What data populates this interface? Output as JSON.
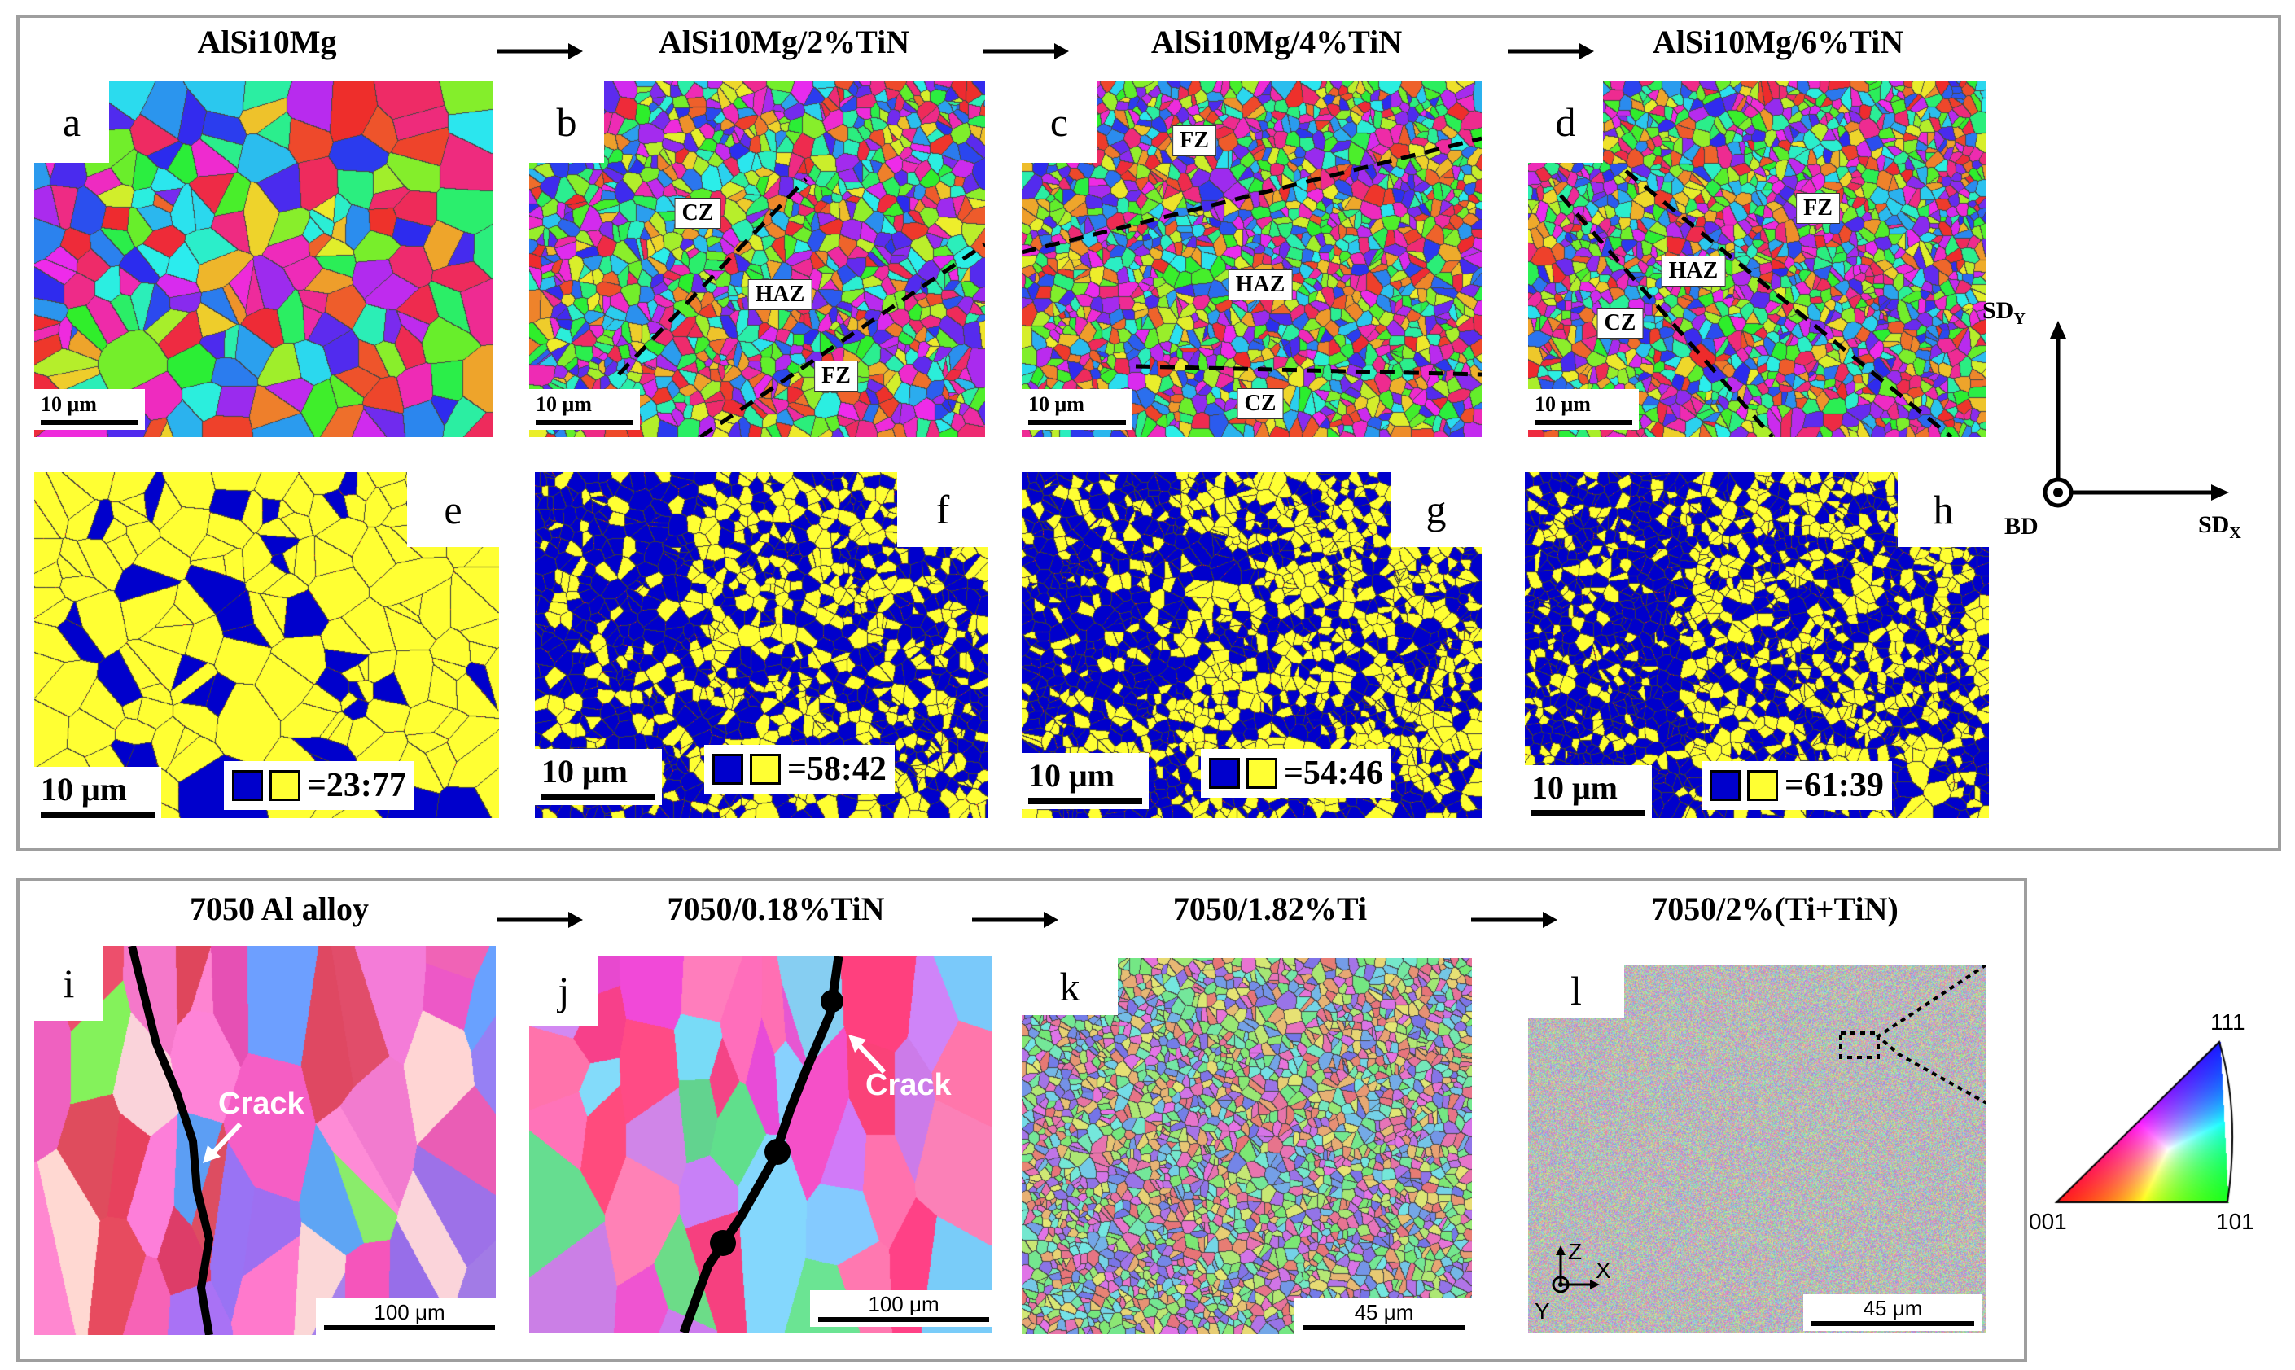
{
  "top_panel": {
    "titles": [
      "AlSi10Mg",
      "AlSi10Mg/2%TiN",
      "AlSi10Mg/4%TiN",
      "AlSi10Mg/6%TiN"
    ],
    "ipf_letters": [
      "a",
      "b",
      "c",
      "d"
    ],
    "phase_letters": [
      "e",
      "f",
      "g",
      "h"
    ],
    "scale_label": "10 μm",
    "zone_labels": {
      "cz": "CZ",
      "haz": "HAZ",
      "fz": "FZ"
    },
    "ratios": [
      "=23:77",
      "=58:42",
      "=54:46",
      "=61:39"
    ],
    "phase_colors": {
      "blue": "#0000cc",
      "yellow": "#ffff33"
    },
    "axes": {
      "sd_y": "SD",
      "sd_y_sub": "Y",
      "sd_x": "SD",
      "sd_x_sub": "X",
      "bd": "BD"
    }
  },
  "bottom_panel": {
    "titles": [
      "7050 Al alloy",
      "7050/0.18%TiN",
      "7050/1.82%Ti",
      "7050/2%(Ti+TiN)"
    ],
    "letters": [
      "i",
      "j",
      "k",
      "l"
    ],
    "scale_labels": [
      "100 μm",
      "100 μm",
      "45 μm",
      "45 μm"
    ],
    "crack_label": "Crack",
    "axes": {
      "z": "Z",
      "x": "X",
      "y": "Y"
    },
    "ipf_legend": {
      "top": "111",
      "left": "001",
      "right": "101"
    }
  }
}
